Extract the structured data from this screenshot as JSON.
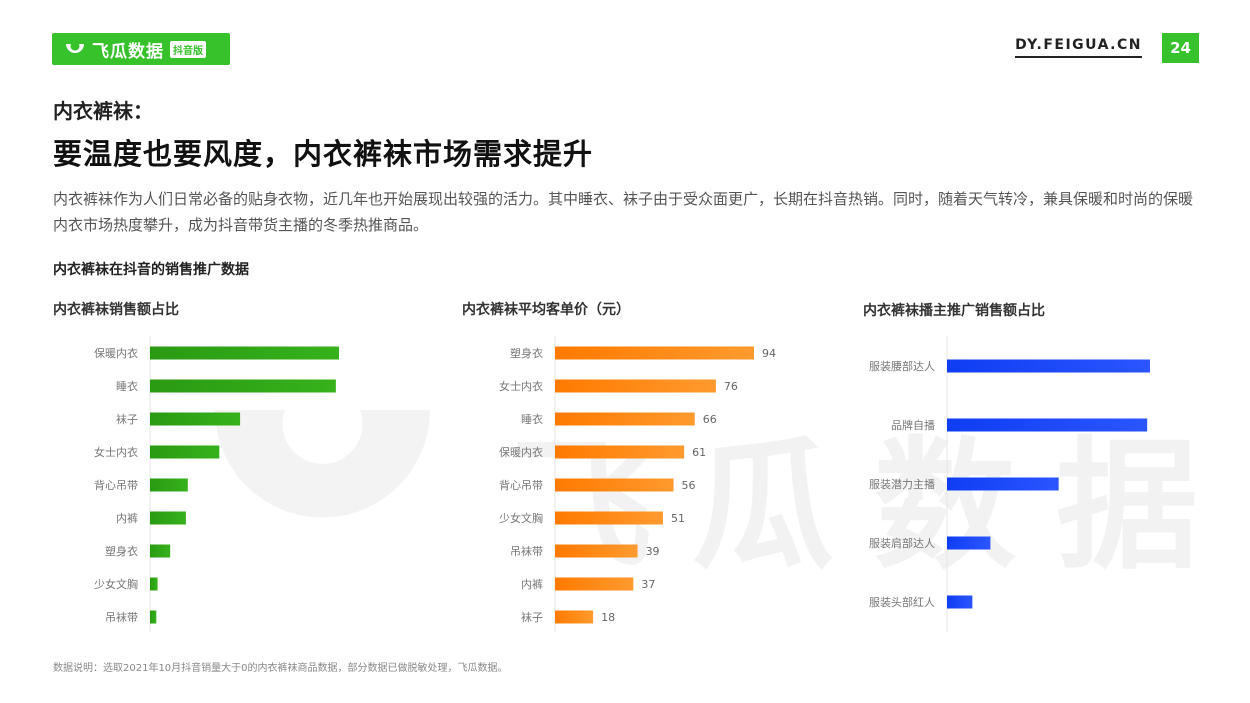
{
  "header": {
    "logo_text": "飞瓜数据",
    "logo_badge": "抖音版",
    "site": "DY.FEIGUA.CN",
    "page_number": "24"
  },
  "subtitle": "内衣裤袜：",
  "title": "要温度也要风度，内衣裤袜市场需求提升",
  "description": "内衣裤袜作为人们日常必备的贴身衣物，近几年也开始展现出较强的活力。其中睡衣、袜子由于受众面更广，长期在抖音热销。同时，随着天气转冷，兼具保暖和时尚的保暖内衣市场热度攀升，成为抖音带货主播的冬季热推商品。",
  "section_title": "内衣裤袜在抖音的销售推广数据",
  "footnote": "数据说明：选取2021年10月抖音销量大于0的内衣裤袜商品数据，部分数据已做脱敏处理，飞瓜数据。",
  "watermark": "飞瓜数据",
  "colors": {
    "brand": "#37c12b",
    "green_bar": "#2a9a12",
    "orange_bar": "#ff7f0e",
    "blue_bar": "#1340f5"
  },
  "chart_data": [
    {
      "type": "bar",
      "orientation": "horizontal",
      "title": "内衣裤袜销售额占比",
      "categories": [
        "保暖内衣",
        "睡衣",
        "袜子",
        "女士内衣",
        "背心吊带",
        "内裤",
        "塑身衣",
        "少女文胸",
        "吊袜带"
      ],
      "values": [
        30,
        29.5,
        14.3,
        11,
        6,
        5.7,
        3.2,
        1.2,
        1
      ],
      "show_values": false
    },
    {
      "type": "bar",
      "orientation": "horizontal",
      "title": "内衣裤袜平均客单价（元）",
      "categories": [
        "塑身衣",
        "女士内衣",
        "睡衣",
        "保暖内衣",
        "背心吊带",
        "少女文胸",
        "吊袜带",
        "内裤",
        "袜子"
      ],
      "values": [
        94,
        76,
        66,
        61,
        56,
        51,
        39,
        37,
        18
      ],
      "show_values": true
    },
    {
      "type": "bar",
      "orientation": "horizontal",
      "title": "内衣裤袜播主推广销售额占比",
      "categories": [
        "服装腰部达人",
        "品牌自播",
        "服装潜力主播",
        "服装肩部达人",
        "服装头部红人"
      ],
      "values": [
        36,
        35.5,
        19.8,
        7.7,
        4.5
      ],
      "show_values": false
    }
  ]
}
